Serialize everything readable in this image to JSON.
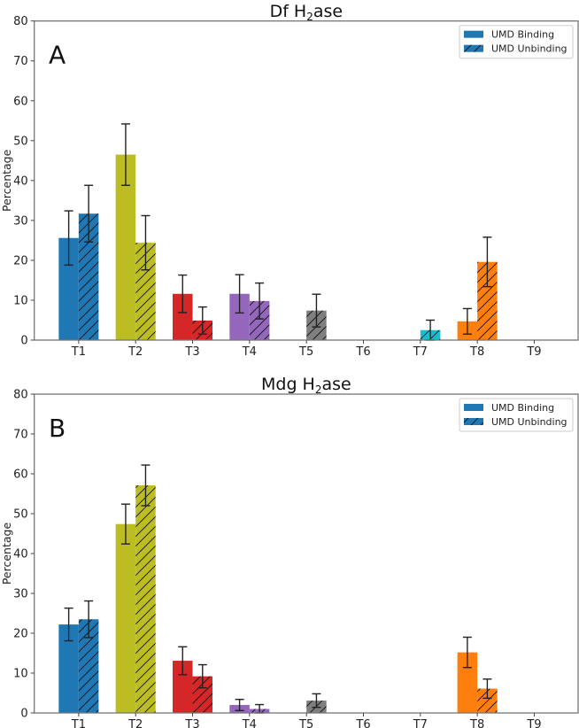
{
  "chart_data": [
    {
      "type": "bar",
      "title": "Df H₂ase",
      "title_main": "Df H",
      "title_sub": "2",
      "title_rest": "ase",
      "panel_label": "A",
      "xlabel": "",
      "ylabel": "Percentage",
      "ylim": [
        0,
        80
      ],
      "yticks": [
        0,
        10,
        20,
        30,
        40,
        50,
        60,
        70,
        80
      ],
      "categories": [
        "T1",
        "T2",
        "T3",
        "T4",
        "T5",
        "T6",
        "T7",
        "T8",
        "T9"
      ],
      "colors": [
        "#1f77b4",
        "#bcbd22",
        "#d62728",
        "#9467bd",
        "#7f7f7f",
        "#8c564b",
        "#17becf",
        "#ff7f0e",
        "#e377c2"
      ],
      "legend_position": "top-right",
      "series": [
        {
          "name": "UMD Binding",
          "hatch": false,
          "values": [
            25.6,
            46.5,
            11.6,
            11.6,
            0,
            0,
            0,
            4.7,
            0
          ],
          "errors": [
            6.8,
            7.7,
            4.7,
            4.8,
            0,
            0,
            0,
            3.2,
            0
          ]
        },
        {
          "name": "UMD Unbinding",
          "hatch": true,
          "values": [
            31.7,
            24.4,
            4.9,
            9.8,
            7.4,
            0,
            2.5,
            19.6,
            0
          ],
          "errors": [
            7.1,
            6.8,
            3.4,
            4.5,
            4.1,
            0,
            2.5,
            6.2,
            0
          ]
        }
      ]
    },
    {
      "type": "bar",
      "title": "Mdg H₂ase",
      "title_main": "Mdg H",
      "title_sub": "2",
      "title_rest": "ase",
      "panel_label": "B",
      "xlabel": "",
      "ylabel": "Percentage",
      "ylim": [
        0,
        80
      ],
      "yticks": [
        0,
        10,
        20,
        30,
        40,
        50,
        60,
        70,
        80
      ],
      "categories": [
        "T1",
        "T2",
        "T3",
        "T4",
        "T5",
        "T6",
        "T7",
        "T8",
        "T9"
      ],
      "colors": [
        "#1f77b4",
        "#bcbd22",
        "#d62728",
        "#9467bd",
        "#7f7f7f",
        "#8c564b",
        "#17becf",
        "#ff7f0e",
        "#e377c2"
      ],
      "legend_position": "top-right",
      "series": [
        {
          "name": "UMD Binding",
          "hatch": false,
          "values": [
            22.2,
            47.4,
            13.1,
            2.0,
            0,
            0,
            0,
            15.2,
            0
          ],
          "errors": [
            4.1,
            5.0,
            3.5,
            1.4,
            0,
            0,
            0,
            3.8,
            0
          ]
        },
        {
          "name": "UMD Unbinding",
          "hatch": true,
          "values": [
            23.5,
            57.1,
            9.2,
            1.0,
            3.1,
            0,
            0,
            6.1,
            0
          ],
          "errors": [
            4.6,
            5.1,
            2.9,
            1.1,
            1.7,
            0,
            0,
            2.4,
            0
          ]
        }
      ]
    }
  ]
}
